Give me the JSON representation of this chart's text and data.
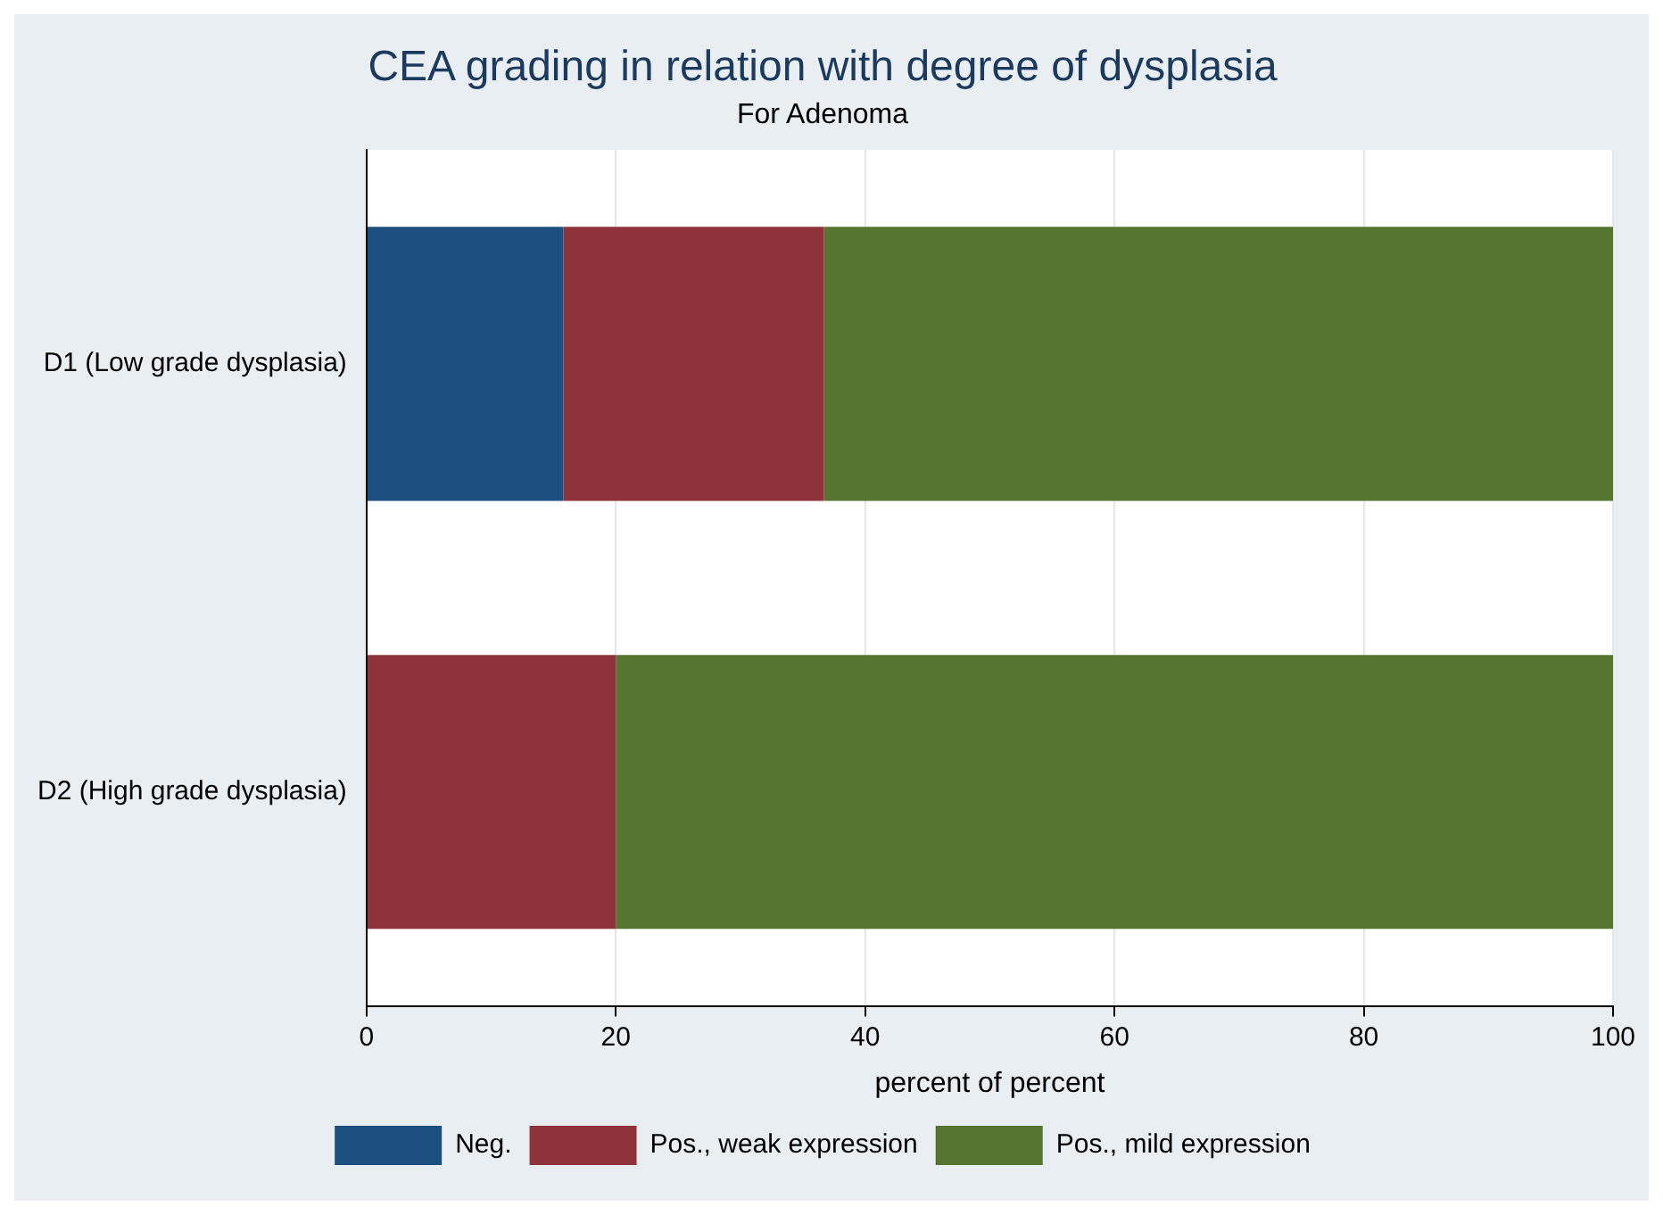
{
  "chart_data": {
    "type": "bar",
    "title": "CEA grading in relation with degree of dysplasia",
    "subtitle": "For Adenoma",
    "xlabel": "percent of percent",
    "orientation": "horizontal",
    "stacked": true,
    "categories": [
      "D1 (Low grade dysplasia)",
      "D2 (High grade dysplasia)"
    ],
    "series": [
      {
        "name": "Neg.",
        "color": "#1a4f7e",
        "values": [
          15.8,
          0
        ]
      },
      {
        "name": "Pos., weak expression",
        "color": "#8f333b",
        "values": [
          20.9,
          20
        ]
      },
      {
        "name": "Pos., mild expression",
        "color": "#567530",
        "values": [
          63.3,
          80
        ]
      }
    ],
    "xlim": [
      0,
      100
    ],
    "xticks": [
      0,
      20,
      40,
      60,
      80,
      100
    ],
    "grid": "x",
    "legend": "bottom"
  }
}
